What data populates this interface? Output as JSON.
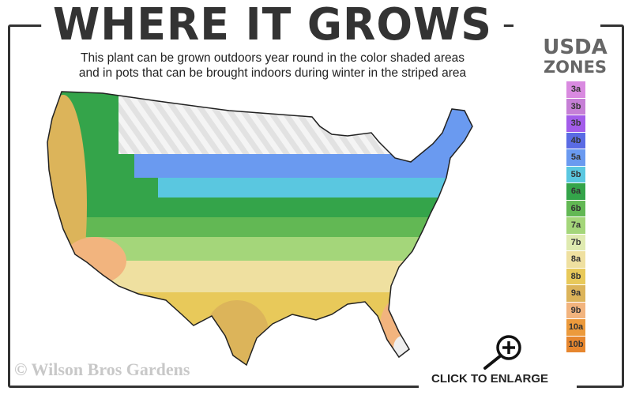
{
  "header": {
    "title": "WHERE IT GROWS",
    "subtitle_line1": "This plant can be grown outdoors year round in the color shaded areas",
    "subtitle_line2": "and in pots that can be brought indoors during winter in the striped area"
  },
  "legend": {
    "title_line1": "USDA",
    "title_line2": "ZONES",
    "zones": [
      {
        "label": "3a",
        "color": "#d98ae0"
      },
      {
        "label": "3b",
        "color": "#c67fd6"
      },
      {
        "label": "3b",
        "color": "#a35cea"
      },
      {
        "label": "4b",
        "color": "#5a6be4"
      },
      {
        "label": "5a",
        "color": "#6a9af0"
      },
      {
        "label": "5b",
        "color": "#5ac7e0"
      },
      {
        "label": "6a",
        "color": "#34a44a"
      },
      {
        "label": "6b",
        "color": "#62b854"
      },
      {
        "label": "7a",
        "color": "#a4d67a"
      },
      {
        "label": "7b",
        "color": "#dfeab0"
      },
      {
        "label": "8a",
        "color": "#efe0a0"
      },
      {
        "label": "8b",
        "color": "#e8c95a"
      },
      {
        "label": "9a",
        "color": "#dcb45a"
      },
      {
        "label": "9b",
        "color": "#f2b47e"
      },
      {
        "label": "10a",
        "color": "#ec9a3c"
      },
      {
        "label": "10b",
        "color": "#e6862e"
      }
    ]
  },
  "watermark": "© Wilson Bros Gardens",
  "enlarge": {
    "label": "CLICK TO ENLARGE",
    "icon": "zoom-in-magnifier-icon"
  }
}
